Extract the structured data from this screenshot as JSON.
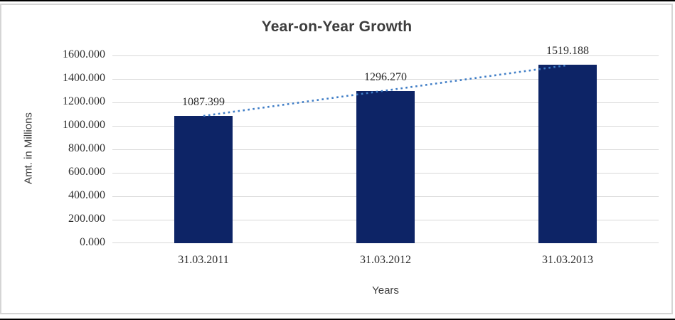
{
  "chart_data": {
    "type": "bar",
    "title": "Year-on-Year Growth",
    "xlabel": "Years",
    "ylabel": "Amt. in Millions",
    "categories": [
      "31.03.2011",
      "31.03.2012",
      "31.03.2013"
    ],
    "values": [
      1087.399,
      1296.27,
      1519.188
    ],
    "data_labels": [
      "1087.399",
      "1296.270",
      "1519.188"
    ],
    "ytick_labels": [
      "0.000",
      "200.000",
      "400.000",
      "600.000",
      "800.000",
      "1000.000",
      "1200.000",
      "1400.000",
      "1600.000"
    ],
    "ylim": [
      0,
      1600
    ],
    "grid": true,
    "legend": "none",
    "trendline": {
      "type": "linear",
      "style": "dotted"
    },
    "colors": {
      "bar": "#0d2466",
      "trendline": "#3f7dc6",
      "gridline": "#d9d9d9",
      "frame_border": "#d5d5d5",
      "outer_border": "#000000",
      "title_text": "#3d3d3d",
      "tick_text": "#2d2d2d"
    }
  }
}
